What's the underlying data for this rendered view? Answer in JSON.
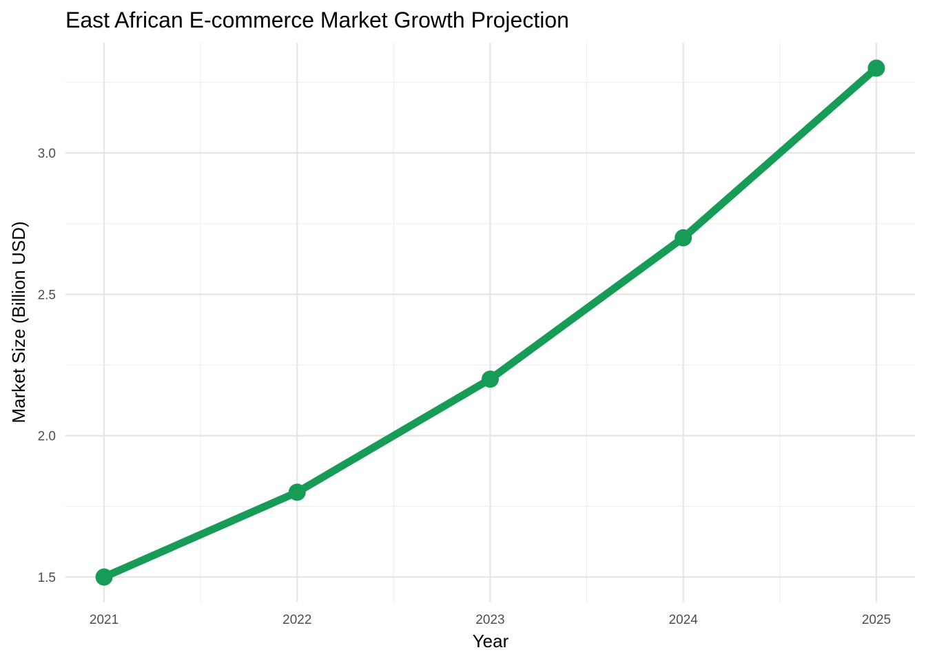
{
  "chart_data": {
    "type": "line",
    "title": "East African E-commerce Market Growth Projection",
    "xlabel": "Year",
    "ylabel": "Market Size (Billion USD)",
    "x": [
      2021,
      2022,
      2023,
      2024,
      2025
    ],
    "series": [
      {
        "values": [
          1.5,
          1.8,
          2.2,
          2.7,
          3.3
        ]
      }
    ],
    "x_ticks": [
      "2021",
      "2022",
      "2023",
      "2024",
      "2025"
    ],
    "y_ticks": [
      "1.5",
      "2.0",
      "2.5",
      "3.0"
    ],
    "xlim": [
      2020.8,
      2025.2
    ],
    "ylim": [
      1.41,
      3.39
    ],
    "grid": true,
    "legend": "none",
    "colors": {
      "line": "#169c57",
      "grid_major": "#e5e5e5",
      "grid_minor": "#efefef",
      "tick_text": "#4d4d4d"
    }
  }
}
